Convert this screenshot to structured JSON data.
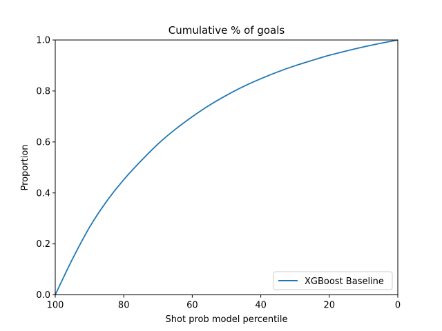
{
  "chart_data": {
    "type": "line",
    "title": "Cumulative % of goals",
    "xlabel": "Shot prob model percentile",
    "ylabel": "Proportion",
    "xlim": [
      100,
      0
    ],
    "ylim": [
      0.0,
      1.0
    ],
    "x_ticks": [
      "100",
      "80",
      "60",
      "40",
      "20",
      "0"
    ],
    "y_ticks": [
      "0.0",
      "0.2",
      "0.4",
      "0.6",
      "0.8",
      "1.0"
    ],
    "x_axis_inverted": true,
    "grid": false,
    "legend_position": "lower right",
    "series": [
      {
        "name": "XGBoost Baseline",
        "color": "#1f77b4",
        "x": [
          100,
          95,
          90,
          85,
          80,
          75,
          70,
          65,
          60,
          55,
          50,
          45,
          40,
          35,
          30,
          25,
          20,
          15,
          10,
          5,
          0
        ],
        "values": [
          0.0,
          0.14,
          0.265,
          0.367,
          0.452,
          0.525,
          0.592,
          0.649,
          0.699,
          0.744,
          0.783,
          0.818,
          0.848,
          0.875,
          0.899,
          0.92,
          0.94,
          0.957,
          0.973,
          0.987,
          1.0
        ]
      }
    ]
  }
}
